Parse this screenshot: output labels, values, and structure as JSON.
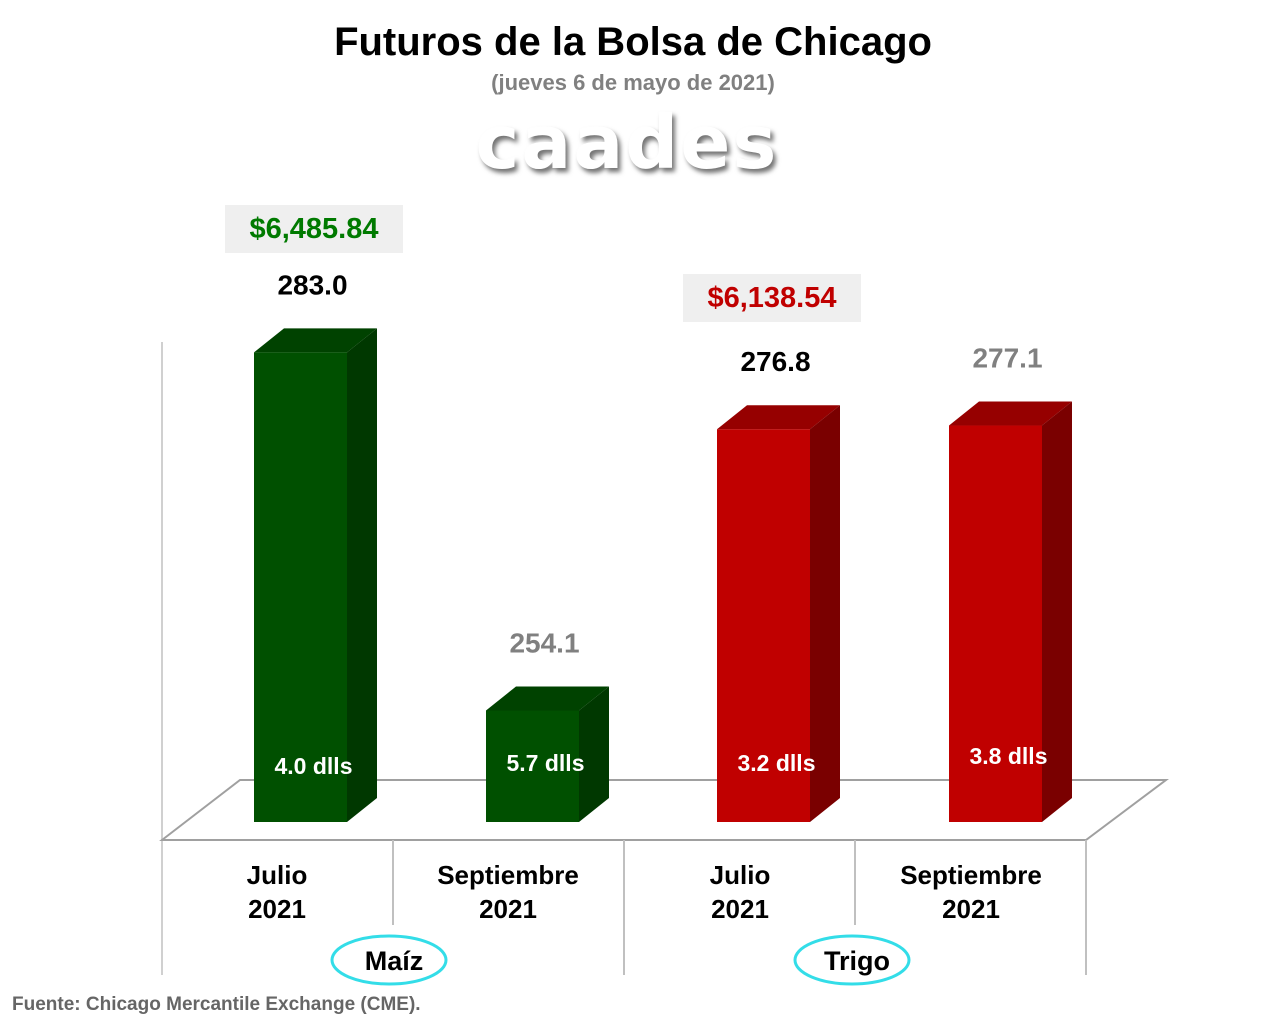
{
  "header": {
    "title": "Futuros de la Bolsa de Chicago",
    "subtitle": "(jueves 6 de mayo de 2021)",
    "logo": "caades"
  },
  "totals": [
    {
      "value": "$6,485.84",
      "color": "#007a00"
    },
    {
      "value": "$6,138.54",
      "color": "#c00000"
    }
  ],
  "source": "Fuente: Chicago Mercantile Exchange (CME).",
  "chart_data": {
    "type": "bar",
    "ylim": [
      245.1,
      290
    ],
    "grid": false,
    "categories": [
      "Julio 2021",
      "Septiembre 2021",
      "Julio 2021",
      "Septiembre 2021"
    ],
    "category_lines": [
      [
        "Julio",
        "2021"
      ],
      [
        "Septiembre",
        "2021"
      ],
      [
        "Julio",
        "2021"
      ],
      [
        "Septiembre",
        "2021"
      ]
    ],
    "groups": [
      "Maíz",
      "Trigo"
    ],
    "values": [
      283.0,
      254.1,
      276.8,
      277.1
    ],
    "value_labels": [
      "283.0",
      "254.1",
      "276.8",
      "277.1"
    ],
    "value_label_colors": [
      "#000000",
      "#808080",
      "#000000",
      "#808080"
    ],
    "inner_labels": [
      "4.0 dlls",
      "5.7 dlls",
      "3.2 dlls",
      "3.8 dlls"
    ],
    "colors": [
      {
        "front": "#005000",
        "side": "#003800",
        "top": "#004200"
      },
      {
        "front": "#005000",
        "side": "#003800",
        "top": "#004200"
      },
      {
        "front": "#c00000",
        "side": "#7a0000",
        "top": "#960000"
      },
      {
        "front": "#c00000",
        "side": "#7a0000",
        "top": "#960000"
      }
    ],
    "group_ellipse_color": "#33dde8"
  }
}
